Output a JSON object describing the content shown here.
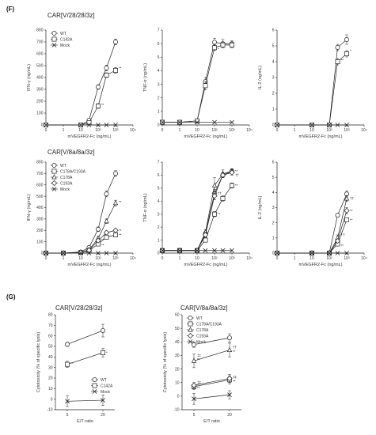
{
  "figure": {
    "label_f": "(F)",
    "label_g": "(G)"
  },
  "titles": {
    "row1": "CAR[V/28/28/3z]",
    "row2": "CAR[V/8a/8a/3z]",
    "g_left": "CAR[V/28/28/3z]",
    "g_right": "CAR[V/8a/8a/3z]"
  },
  "chart_data": [
    {
      "id": "f-ifn-28",
      "type": "line",
      "title": "",
      "xlabel": "mVEGFR2-Fc (ng/mL)",
      "ylabel": "IFN-γ (ng/mL)",
      "x": [
        0,
        1,
        10,
        100,
        1000,
        10000
      ],
      "x_tick_labels": [
        "0",
        "1",
        "10",
        "10²",
        "10³",
        "10⁴"
      ],
      "xscale": "log",
      "ylim": [
        0,
        800
      ],
      "y_ticks": [
        0,
        100,
        200,
        300,
        400,
        500,
        600,
        700,
        800
      ],
      "legend": "top-left",
      "series": [
        {
          "name": "WT",
          "marker": "circle",
          "x": [
            0,
            10,
            30,
            100,
            300,
            1000
          ],
          "values": [
            0,
            0,
            40,
            320,
            480,
            700
          ],
          "err": [
            0,
            0,
            10,
            20,
            25,
            25
          ]
        },
        {
          "name": "C142A",
          "marker": "square",
          "x": [
            0,
            10,
            30,
            100,
            300,
            1000
          ],
          "values": [
            0,
            0,
            20,
            160,
            420,
            460
          ],
          "err": [
            0,
            0,
            5,
            20,
            20,
            25
          ]
        },
        {
          "name": "Mock",
          "marker": "cross",
          "x": [
            0,
            10,
            30,
            100,
            300,
            1000
          ],
          "values": [
            0,
            0,
            0,
            0,
            0,
            0
          ]
        }
      ],
      "annotations": [
        {
          "text": "**",
          "x": 100,
          "y": 170
        },
        {
          "text": "**",
          "x": 1000,
          "y": 480
        }
      ]
    },
    {
      "id": "f-tnf-28",
      "type": "line",
      "title": "",
      "xlabel": "mVEGFR2-Fc (ng/mL)",
      "ylabel": "TNF-α (ng/mL)",
      "x": [
        0,
        1,
        10,
        100,
        1000,
        10000
      ],
      "x_tick_labels": [
        "0",
        "1",
        "10",
        "10²",
        "10³",
        "10⁴"
      ],
      "xscale": "log",
      "ylim": [
        0,
        7
      ],
      "y_ticks": [
        0,
        1,
        2,
        3,
        4,
        5,
        6,
        7
      ],
      "series": [
        {
          "name": "WT",
          "marker": "circle",
          "x": [
            0,
            1,
            10,
            30,
            100,
            300,
            1000
          ],
          "values": [
            0.2,
            0.2,
            0.3,
            3.2,
            6.1,
            6.0,
            6.0
          ],
          "err": [
            0,
            0,
            0,
            0.3,
            0.3,
            0.3,
            0.2
          ]
        },
        {
          "name": "C142A",
          "marker": "square",
          "x": [
            0,
            1,
            10,
            30,
            100,
            300,
            1000
          ],
          "values": [
            0.2,
            0.2,
            0.3,
            2.9,
            5.7,
            5.9,
            5.9
          ],
          "err": [
            0,
            0,
            0,
            0.3,
            0.2,
            0.2,
            0.2
          ]
        },
        {
          "name": "Mock",
          "marker": "cross",
          "x": [
            0,
            1,
            10,
            100,
            1000
          ],
          "values": [
            0.2,
            0.2,
            0.2,
            0.2,
            0.2
          ]
        }
      ],
      "annotations": [
        {
          "text": "*",
          "x": 100,
          "y": 5.6
        }
      ]
    },
    {
      "id": "f-il2-28",
      "type": "line",
      "title": "",
      "xlabel": "mVEGFR2-Fc (ng/mL)",
      "ylabel": "IL-2 (ng/mL)",
      "x": [
        0,
        1,
        10,
        100,
        1000,
        10000
      ],
      "x_tick_labels": [
        "0",
        "1",
        "10",
        "10²",
        "10³",
        "10⁴"
      ],
      "xscale": "log",
      "ylim": [
        0,
        6
      ],
      "y_ticks": [
        0,
        1,
        2,
        3,
        4,
        5,
        6
      ],
      "series": [
        {
          "name": "WT",
          "marker": "circle",
          "x": [
            0,
            10,
            100,
            300,
            1000
          ],
          "values": [
            0,
            0,
            0,
            4.9,
            5.4
          ],
          "err": [
            0,
            0,
            0,
            0.2,
            0.3
          ]
        },
        {
          "name": "C142A",
          "marker": "square",
          "x": [
            0,
            10,
            100,
            300,
            1000
          ],
          "values": [
            0,
            0,
            0,
            4.0,
            4.5
          ],
          "err": [
            0,
            0,
            0,
            0.2,
            0.2
          ]
        },
        {
          "name": "Mock",
          "marker": "cross",
          "x": [
            0,
            10,
            100,
            300,
            1000
          ],
          "values": [
            0,
            0,
            0,
            0,
            0
          ]
        }
      ],
      "annotations": [
        {
          "text": "**",
          "x": 300,
          "y": 4.1
        },
        {
          "text": "*",
          "x": 1000,
          "y": 4.7
        }
      ]
    },
    {
      "id": "f-ifn-8a",
      "type": "line",
      "title": "",
      "xlabel": "mVEGFR2-Fc (ng/mL)",
      "ylabel": "IFN-γ (ng/mL)",
      "x": [
        0,
        1,
        10,
        100,
        1000,
        10000
      ],
      "x_tick_labels": [
        "0",
        "1",
        "10",
        "10²",
        "10³",
        "10⁴"
      ],
      "xscale": "log",
      "ylim": [
        0,
        800
      ],
      "y_ticks": [
        0,
        100,
        200,
        300,
        400,
        500,
        600,
        700,
        800
      ],
      "legend": "top-left",
      "series": [
        {
          "name": "WT",
          "marker": "circle",
          "x": [
            0,
            1,
            10,
            30,
            100,
            300,
            1000
          ],
          "values": [
            0,
            0,
            10,
            50,
            210,
            520,
            700
          ],
          "err": [
            0,
            0,
            0,
            10,
            20,
            25,
            25
          ]
        },
        {
          "name": "C178A/C193A",
          "marker": "square",
          "x": [
            0,
            1,
            10,
            30,
            100,
            300,
            1000
          ],
          "values": [
            0,
            0,
            5,
            20,
            80,
            140,
            160
          ],
          "err": [
            0,
            0,
            0,
            5,
            10,
            10,
            10
          ]
        },
        {
          "name": "C178A",
          "marker": "triangle",
          "x": [
            0,
            1,
            10,
            30,
            100,
            300,
            1000
          ],
          "values": [
            0,
            0,
            5,
            30,
            130,
            280,
            440
          ],
          "err": [
            0,
            0,
            0,
            5,
            15,
            20,
            25
          ]
        },
        {
          "name": "C193A",
          "marker": "diamond",
          "x": [
            0,
            1,
            10,
            30,
            100,
            300,
            1000
          ],
          "values": [
            0,
            0,
            5,
            25,
            110,
            180,
            200
          ],
          "err": [
            0,
            0,
            0,
            5,
            10,
            15,
            15
          ]
        },
        {
          "name": "Mock",
          "marker": "cross",
          "x": [
            0,
            1,
            10,
            30,
            100,
            300,
            1000
          ],
          "values": [
            0,
            0,
            0,
            0,
            0,
            0,
            0
          ]
        }
      ],
      "annotations": [
        {
          "text": "**",
          "x": 1000,
          "y": 450
        },
        {
          "text": "**",
          "x": 1000,
          "y": 200
        },
        {
          "text": "**",
          "x": 1000,
          "y": 160
        },
        {
          "text": "**",
          "x": 100,
          "y": 120
        },
        {
          "text": "**",
          "x": 100,
          "y": 70
        }
      ]
    },
    {
      "id": "f-tnf-8a",
      "type": "line",
      "title": "",
      "xlabel": "mVEGFR2-Fc (ng/mL)",
      "ylabel": "TNF-α (ng/mL)",
      "x": [
        0,
        1,
        10,
        100,
        1000,
        10000
      ],
      "x_tick_labels": [
        "0",
        "1",
        "10",
        "10²",
        "10³",
        "10⁴"
      ],
      "xscale": "log",
      "ylim": [
        0,
        7
      ],
      "y_ticks": [
        0,
        1,
        2,
        3,
        4,
        5,
        6,
        7
      ],
      "series": [
        {
          "name": "WT",
          "marker": "circle",
          "x": [
            0,
            1,
            10,
            30,
            100,
            300,
            1000
          ],
          "values": [
            0.2,
            0.2,
            0.2,
            1.5,
            4.6,
            6.0,
            6.3
          ],
          "err": [
            0,
            0,
            0,
            0.2,
            0.3,
            0.2,
            0.2
          ]
        },
        {
          "name": "C178A/C193A",
          "marker": "square",
          "x": [
            0,
            1,
            10,
            30,
            100,
            300,
            1000
          ],
          "values": [
            0.2,
            0.2,
            0.2,
            1.0,
            3.0,
            4.2,
            5.2
          ],
          "err": [
            0,
            0,
            0,
            0.1,
            0.2,
            0.2,
            0.2
          ]
        },
        {
          "name": "C178A",
          "marker": "triangle",
          "x": [
            0,
            1,
            10,
            30,
            100,
            300,
            1000
          ],
          "values": [
            0.2,
            0.2,
            0.2,
            1.6,
            5.2,
            6.1,
            6.3
          ],
          "err": [
            0,
            0,
            0,
            0.2,
            0.6,
            0.3,
            0.2
          ]
        },
        {
          "name": "C193A",
          "marker": "diamond",
          "x": [
            0,
            1,
            10,
            30,
            100,
            300,
            1000
          ],
          "values": [
            0.2,
            0.2,
            0.2,
            1.4,
            4.4,
            6.0,
            6.2
          ],
          "err": [
            0,
            0,
            0,
            0.2,
            0.3,
            0.2,
            0.2
          ]
        },
        {
          "name": "Mock",
          "marker": "cross",
          "x": [
            0,
            1,
            10,
            30,
            100,
            300,
            1000
          ],
          "values": [
            0.2,
            0.2,
            0.2,
            0.2,
            0.2,
            0.2,
            0.2
          ]
        }
      ],
      "annotations": [
        {
          "text": "**",
          "x": 1000,
          "y": 5.2
        },
        {
          "text": "**",
          "x": 100,
          "y": 3.0
        },
        {
          "text": "††",
          "x": 100,
          "y": 4.6
        },
        {
          "text": "**",
          "x": 1000,
          "y": 6.3
        },
        {
          "text": "††",
          "x": 1000,
          "y": 6.0
        }
      ]
    },
    {
      "id": "f-il2-8a",
      "type": "line",
      "title": "",
      "xlabel": "mVEGFR2-Fc (ng/mL)",
      "ylabel": "IL-2 (ng/mL)",
      "x": [
        0,
        1,
        10,
        100,
        1000,
        10000
      ],
      "x_tick_labels": [
        "0",
        "1",
        "10",
        "10²",
        "10³",
        "10⁴"
      ],
      "xscale": "log",
      "ylim": [
        0,
        6
      ],
      "y_ticks": [
        0,
        1,
        2,
        3,
        4,
        5,
        6
      ],
      "series": [
        {
          "name": "WT",
          "marker": "circle",
          "x": [
            0,
            10,
            100,
            300,
            1000
          ],
          "values": [
            0,
            0,
            0,
            2.5,
            3.9
          ],
          "err": [
            0,
            0,
            0,
            0.1,
            0.2
          ]
        },
        {
          "name": "C178A/C193A",
          "marker": "square",
          "x": [
            0,
            10,
            100,
            300,
            1000
          ],
          "values": [
            0,
            0,
            0,
            0.6,
            2.2
          ],
          "err": [
            0,
            0,
            0,
            0.1,
            0.1
          ]
        },
        {
          "name": "C178A",
          "marker": "triangle",
          "x": [
            0,
            10,
            100,
            300,
            1000
          ],
          "values": [
            0,
            0,
            0,
            1.0,
            3.6
          ],
          "err": [
            0,
            0,
            0,
            0.2,
            0.2
          ]
        },
        {
          "name": "C193A",
          "marker": "diamond",
          "x": [
            0,
            10,
            100,
            300,
            1000
          ],
          "values": [
            0,
            0,
            0,
            0.8,
            2.8
          ],
          "err": [
            0,
            0,
            0,
            0.1,
            0.2
          ]
        },
        {
          "name": "Mock",
          "marker": "cross",
          "x": [
            0,
            10,
            100,
            300,
            1000
          ],
          "values": [
            0,
            0,
            0,
            0,
            0
          ]
        }
      ],
      "annotations": [
        {
          "text": "**",
          "x": 1000,
          "y": 2.2
        },
        {
          "text": "**",
          "x": 1000,
          "y": 2.8
        },
        {
          "text": "**",
          "x": 300,
          "y": 0.5
        },
        {
          "text": "††",
          "x": 300,
          "y": 1.2
        },
        {
          "text": "††",
          "x": 1000,
          "y": 3.6
        }
      ]
    },
    {
      "id": "g-28",
      "type": "line",
      "title": "",
      "xlabel": "E/T ratio",
      "ylabel": "Cytotoxicity (% of specific lysis)",
      "categories": [
        "5",
        "20"
      ],
      "ylim": [
        -10,
        80
      ],
      "y_ticks": [
        -10,
        0,
        10,
        20,
        30,
        40,
        50,
        60,
        70,
        80
      ],
      "legend": "bottom-right",
      "series": [
        {
          "name": "WT",
          "marker": "circle",
          "values": [
            52,
            65
          ],
          "err": [
            2,
            6
          ]
        },
        {
          "name": "C142A",
          "marker": "square",
          "values": [
            33,
            44
          ],
          "err": [
            3,
            4
          ]
        },
        {
          "name": "Mock",
          "marker": "cross",
          "values": [
            -2,
            -1
          ],
          "err": [
            5,
            5
          ]
        }
      ],
      "annotations": [
        {
          "text": "**",
          "category": "5",
          "y": 34
        },
        {
          "text": "*",
          "category": "20",
          "y": 44
        }
      ]
    },
    {
      "id": "g-8a",
      "type": "line",
      "title": "",
      "xlabel": "E/T ratio",
      "ylabel": "Cytotoxicity (% of specific lysis)",
      "categories": [
        "5",
        "20"
      ],
      "ylim": [
        -10,
        60
      ],
      "y_ticks": [
        -10,
        0,
        10,
        20,
        30,
        40,
        50,
        60
      ],
      "legend": "top-left",
      "series": [
        {
          "name": "WT",
          "marker": "circle",
          "values": [
            38,
            43
          ],
          "err": [
            2,
            3
          ]
        },
        {
          "name": "C178A/C193A",
          "marker": "square",
          "values": [
            7,
            12
          ],
          "err": [
            2,
            3
          ]
        },
        {
          "name": "C178A",
          "marker": "triangle",
          "values": [
            26,
            34
          ],
          "err": [
            5,
            5
          ]
        },
        {
          "name": "C193A",
          "marker": "diamond",
          "values": [
            8,
            13
          ],
          "err": [
            2,
            3
          ]
        },
        {
          "name": "Mock",
          "marker": "cross",
          "values": [
            -2,
            1
          ],
          "err": [
            4,
            3
          ]
        }
      ],
      "annotations": [
        {
          "text": "**",
          "category": "5",
          "y": 27
        },
        {
          "text": "‡‡",
          "category": "5",
          "y": 30
        },
        {
          "text": "**",
          "category": "5",
          "y": 6
        },
        {
          "text": "‡‡",
          "category": "5",
          "y": 10
        },
        {
          "text": "**",
          "category": "20",
          "y": 33
        },
        {
          "text": "††",
          "category": "20",
          "y": 36
        },
        {
          "text": "**",
          "category": "20",
          "y": 11
        },
        {
          "text": "‡‡",
          "category": "20",
          "y": 14
        }
      ]
    }
  ]
}
